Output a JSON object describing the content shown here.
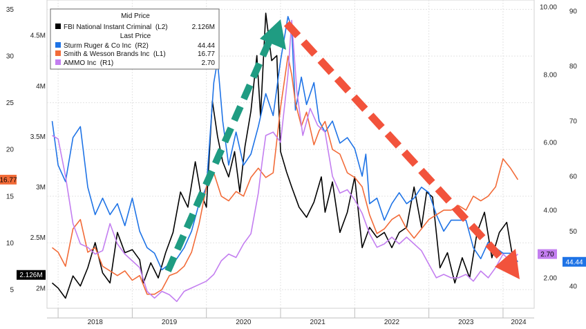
{
  "chart_data": {
    "type": "line",
    "title": "",
    "xlabel": "",
    "x_ticks": [
      "2018",
      "2019",
      "2020",
      "2021",
      "2022",
      "2023",
      "2024"
    ],
    "grid": true,
    "legend_position": "top-left",
    "axes": {
      "L1": {
        "side": "left-outer",
        "ylim": [
          3,
          36
        ],
        "ticks": [
          "5",
          "10",
          "15",
          "20",
          "25",
          "30",
          "35"
        ]
      },
      "L2": {
        "side": "left-inner",
        "ylim": [
          1.8,
          4.85
        ],
        "unit": "M",
        "ticks": [
          "2M",
          "2.5M",
          "3M",
          "3.5M",
          "4M",
          "4.5M"
        ]
      },
      "R1": {
        "side": "right-inner",
        "ylim": [
          1.1,
          10.2
        ],
        "ticks": [
          "2.00",
          "4.00",
          "6.00",
          "8.00",
          "10.00"
        ]
      },
      "R2": {
        "side": "right-outer",
        "ylim": [
          36,
          92
        ],
        "ticks": [
          "40",
          "50",
          "60",
          "70",
          "80",
          "90"
        ]
      }
    },
    "legend": {
      "mid_header": "Mid Price",
      "last_header": "Last Price"
    },
    "series": [
      {
        "name": "FBI National Instant Criminal  (L2)",
        "value_label": "2.126M",
        "axis": "L2",
        "color": "#000000",
        "last_tag": "2.126M",
        "points": [
          [
            2017.92,
            2.05
          ],
          [
            2018.0,
            2.0
          ],
          [
            2018.1,
            1.9
          ],
          [
            2018.2,
            2.12
          ],
          [
            2018.3,
            2.02
          ],
          [
            2018.4,
            2.2
          ],
          [
            2018.5,
            2.45
          ],
          [
            2018.6,
            2.15
          ],
          [
            2018.7,
            2.05
          ],
          [
            2018.8,
            2.55
          ],
          [
            2018.9,
            2.35
          ],
          [
            2019.0,
            2.38
          ],
          [
            2019.1,
            2.28
          ],
          [
            2019.15,
            2.05
          ],
          [
            2019.25,
            2.25
          ],
          [
            2019.35,
            2.1
          ],
          [
            2019.45,
            2.35
          ],
          [
            2019.55,
            2.55
          ],
          [
            2019.65,
            2.95
          ],
          [
            2019.75,
            2.8
          ],
          [
            2019.85,
            3.25
          ],
          [
            2019.92,
            2.95
          ],
          [
            2020.0,
            2.8
          ],
          [
            2020.08,
            3.85
          ],
          [
            2020.15,
            3.5
          ],
          [
            2020.22,
            3.25
          ],
          [
            2020.3,
            3.1
          ],
          [
            2020.38,
            3.35
          ],
          [
            2020.45,
            2.95
          ],
          [
            2020.52,
            3.4
          ],
          [
            2020.6,
            3.75
          ],
          [
            2020.68,
            4.3
          ],
          [
            2020.73,
            3.7
          ],
          [
            2020.8,
            4.72
          ],
          [
            2020.88,
            4.25
          ],
          [
            2020.95,
            4.3
          ],
          [
            2021.0,
            3.35
          ],
          [
            2021.08,
            3.15
          ],
          [
            2021.15,
            3.0
          ],
          [
            2021.25,
            2.8
          ],
          [
            2021.35,
            2.7
          ],
          [
            2021.45,
            2.85
          ],
          [
            2021.55,
            3.1
          ],
          [
            2021.6,
            2.75
          ],
          [
            2021.7,
            3.05
          ],
          [
            2021.8,
            2.55
          ],
          [
            2021.9,
            2.75
          ],
          [
            2022.0,
            3.1
          ],
          [
            2022.1,
            2.4
          ],
          [
            2022.2,
            2.6
          ],
          [
            2022.3,
            2.5
          ],
          [
            2022.4,
            2.55
          ],
          [
            2022.5,
            2.4
          ],
          [
            2022.6,
            2.55
          ],
          [
            2022.7,
            2.6
          ],
          [
            2022.8,
            3.0
          ],
          [
            2022.9,
            2.6
          ],
          [
            2022.97,
            2.95
          ],
          [
            2023.05,
            2.9
          ],
          [
            2023.15,
            2.2
          ],
          [
            2023.25,
            2.35
          ],
          [
            2023.35,
            2.05
          ],
          [
            2023.45,
            2.3
          ],
          [
            2023.55,
            2.1
          ],
          [
            2023.65,
            2.55
          ],
          [
            2023.75,
            2.75
          ],
          [
            2023.85,
            2.3
          ],
          [
            2023.95,
            2.55
          ],
          [
            2024.05,
            2.65
          ],
          [
            2024.12,
            2.35
          ],
          [
            2024.2,
            2.13
          ]
        ]
      },
      {
        "name": "Sturm Ruger & Co Inc  (R2)",
        "value_label": "44.44",
        "axis": "R2",
        "color": "#1e73e6",
        "last_tag": "44.44",
        "points": [
          [
            2017.92,
            70
          ],
          [
            2018.0,
            62
          ],
          [
            2018.1,
            59
          ],
          [
            2018.2,
            67
          ],
          [
            2018.3,
            69
          ],
          [
            2018.4,
            58
          ],
          [
            2018.5,
            53
          ],
          [
            2018.6,
            56
          ],
          [
            2018.7,
            53
          ],
          [
            2018.8,
            55
          ],
          [
            2018.9,
            51
          ],
          [
            2019.0,
            56
          ],
          [
            2019.1,
            50
          ],
          [
            2019.2,
            47
          ],
          [
            2019.3,
            46
          ],
          [
            2019.4,
            43
          ],
          [
            2019.5,
            44
          ],
          [
            2019.6,
            45
          ],
          [
            2019.7,
            47
          ],
          [
            2019.8,
            50
          ],
          [
            2019.9,
            55
          ],
          [
            2020.0,
            58
          ],
          [
            2020.1,
            77
          ],
          [
            2020.15,
            81
          ],
          [
            2020.22,
            70
          ],
          [
            2020.3,
            62
          ],
          [
            2020.4,
            68
          ],
          [
            2020.5,
            62
          ],
          [
            2020.6,
            64
          ],
          [
            2020.7,
            69
          ],
          [
            2020.8,
            75
          ],
          [
            2020.9,
            71
          ],
          [
            2021.0,
            81
          ],
          [
            2021.1,
            89
          ],
          [
            2021.15,
            87
          ],
          [
            2021.2,
            72
          ],
          [
            2021.28,
            78
          ],
          [
            2021.35,
            73
          ],
          [
            2021.45,
            77
          ],
          [
            2021.52,
            70
          ],
          [
            2021.6,
            68
          ],
          [
            2021.7,
            70
          ],
          [
            2021.8,
            66
          ],
          [
            2021.9,
            67
          ],
          [
            2022.0,
            65
          ],
          [
            2022.1,
            60
          ],
          [
            2022.15,
            64
          ],
          [
            2022.2,
            55
          ],
          [
            2022.3,
            56
          ],
          [
            2022.4,
            52
          ],
          [
            2022.5,
            55
          ],
          [
            2022.6,
            57
          ],
          [
            2022.7,
            55
          ],
          [
            2022.8,
            56
          ],
          [
            2022.9,
            58
          ],
          [
            2023.0,
            57
          ],
          [
            2023.1,
            53
          ],
          [
            2023.2,
            50
          ],
          [
            2023.3,
            52
          ],
          [
            2023.4,
            52
          ],
          [
            2023.5,
            52
          ],
          [
            2023.6,
            47
          ],
          [
            2023.7,
            45
          ],
          [
            2023.8,
            48
          ],
          [
            2023.9,
            47
          ],
          [
            2024.0,
            46
          ],
          [
            2024.1,
            46
          ],
          [
            2024.2,
            44.44
          ]
        ]
      },
      {
        "name": "Smith & Wesson Brands Inc  (L1)",
        "value_label": "16.77",
        "axis": "L1",
        "color": "#f26b38",
        "last_tag": "16.77",
        "points": [
          [
            2017.92,
            9.5
          ],
          [
            2018.0,
            9.0
          ],
          [
            2018.1,
            7.5
          ],
          [
            2018.2,
            11.5
          ],
          [
            2018.3,
            12.5
          ],
          [
            2018.4,
            9.0
          ],
          [
            2018.5,
            9.5
          ],
          [
            2018.6,
            7.5
          ],
          [
            2018.7,
            7.0
          ],
          [
            2018.8,
            6.5
          ],
          [
            2018.9,
            7.0
          ],
          [
            2019.0,
            6.0
          ],
          [
            2019.1,
            6.5
          ],
          [
            2019.2,
            4.5
          ],
          [
            2019.3,
            4.5
          ],
          [
            2019.4,
            5.0
          ],
          [
            2019.5,
            6.5
          ],
          [
            2019.6,
            6.8
          ],
          [
            2019.7,
            7.5
          ],
          [
            2019.8,
            9.0
          ],
          [
            2019.9,
            12.0
          ],
          [
            2020.0,
            16.0
          ],
          [
            2020.1,
            17.5
          ],
          [
            2020.2,
            15.0
          ],
          [
            2020.3,
            14.5
          ],
          [
            2020.4,
            15.5
          ],
          [
            2020.5,
            15.0
          ],
          [
            2020.6,
            17.0
          ],
          [
            2020.7,
            18.0
          ],
          [
            2020.8,
            17.0
          ],
          [
            2020.9,
            17.5
          ],
          [
            2021.0,
            24.5
          ],
          [
            2021.1,
            30.0
          ],
          [
            2021.15,
            28.0
          ],
          [
            2021.2,
            25.0
          ],
          [
            2021.28,
            22.5
          ],
          [
            2021.35,
            24.0
          ],
          [
            2021.45,
            20.5
          ],
          [
            2021.52,
            22.0
          ],
          [
            2021.6,
            23.0
          ],
          [
            2021.7,
            20.0
          ],
          [
            2021.8,
            19.5
          ],
          [
            2021.9,
            17.5
          ],
          [
            2022.0,
            17.0
          ],
          [
            2022.1,
            16.0
          ],
          [
            2022.2,
            13.0
          ],
          [
            2022.3,
            11.0
          ],
          [
            2022.4,
            11.5
          ],
          [
            2022.5,
            12.5
          ],
          [
            2022.6,
            13.0
          ],
          [
            2022.7,
            11.5
          ],
          [
            2022.8,
            10.5
          ],
          [
            2022.9,
            11.5
          ],
          [
            2023.0,
            12.5
          ],
          [
            2023.1,
            13.0
          ],
          [
            2023.2,
            13.5
          ],
          [
            2023.3,
            13.5
          ],
          [
            2023.4,
            14.0
          ],
          [
            2023.5,
            13.5
          ],
          [
            2023.6,
            15.0
          ],
          [
            2023.7,
            14.5
          ],
          [
            2023.8,
            15.0
          ],
          [
            2023.9,
            16.0
          ],
          [
            2024.0,
            19.0
          ],
          [
            2024.1,
            18.0
          ],
          [
            2024.2,
            16.77
          ]
        ]
      },
      {
        "name": "AMMO Inc  (R1)",
        "value_label": "2.70",
        "axis": "R1",
        "color": "#c37ef0",
        "last_tag": "2.70",
        "points": [
          [
            2017.92,
            6.2
          ],
          [
            2018.0,
            6.1
          ],
          [
            2018.1,
            5.0
          ],
          [
            2018.2,
            3.6
          ],
          [
            2018.3,
            3.0
          ],
          [
            2018.4,
            2.9
          ],
          [
            2018.5,
            2.7
          ],
          [
            2018.6,
            2.8
          ],
          [
            2018.7,
            3.6
          ],
          [
            2018.8,
            3.0
          ],
          [
            2018.9,
            2.7
          ],
          [
            2019.0,
            2.5
          ],
          [
            2019.1,
            2.3
          ],
          [
            2019.2,
            1.6
          ],
          [
            2019.3,
            1.4
          ],
          [
            2019.4,
            1.6
          ],
          [
            2019.5,
            1.5
          ],
          [
            2019.6,
            1.3
          ],
          [
            2019.7,
            1.6
          ],
          [
            2019.8,
            1.7
          ],
          [
            2019.9,
            1.8
          ],
          [
            2020.0,
            1.9
          ],
          [
            2020.1,
            2.1
          ],
          [
            2020.2,
            2.5
          ],
          [
            2020.3,
            2.7
          ],
          [
            2020.4,
            2.6
          ],
          [
            2020.5,
            3.0
          ],
          [
            2020.6,
            3.3
          ],
          [
            2020.7,
            4.5
          ],
          [
            2020.75,
            5.4
          ],
          [
            2020.8,
            6.2
          ],
          [
            2020.9,
            6.3
          ],
          [
            2021.0,
            6.0
          ],
          [
            2021.05,
            7.0
          ],
          [
            2021.1,
            8.0
          ],
          [
            2021.15,
            9.6
          ],
          [
            2021.22,
            7.5
          ],
          [
            2021.3,
            6.2
          ],
          [
            2021.4,
            7.0
          ],
          [
            2021.5,
            6.5
          ],
          [
            2021.6,
            6.3
          ],
          [
            2021.7,
            5.0
          ],
          [
            2021.8,
            4.5
          ],
          [
            2021.9,
            4.6
          ],
          [
            2022.0,
            4.3
          ],
          [
            2022.1,
            3.9
          ],
          [
            2022.2,
            3.3
          ],
          [
            2022.3,
            2.9
          ],
          [
            2022.4,
            3.0
          ],
          [
            2022.5,
            3.2
          ],
          [
            2022.6,
            3.0
          ],
          [
            2022.7,
            3.2
          ],
          [
            2022.8,
            3.0
          ],
          [
            2022.9,
            2.8
          ],
          [
            2023.0,
            2.4
          ],
          [
            2023.1,
            2.0
          ],
          [
            2023.2,
            2.1
          ],
          [
            2023.3,
            2.0
          ],
          [
            2023.4,
            2.0
          ],
          [
            2023.5,
            2.1
          ],
          [
            2023.6,
            1.9
          ],
          [
            2023.7,
            2.2
          ],
          [
            2023.8,
            2.0
          ],
          [
            2023.9,
            2.3
          ],
          [
            2024.0,
            2.7
          ],
          [
            2024.1,
            2.5
          ],
          [
            2024.2,
            2.7
          ]
        ]
      }
    ]
  }
}
